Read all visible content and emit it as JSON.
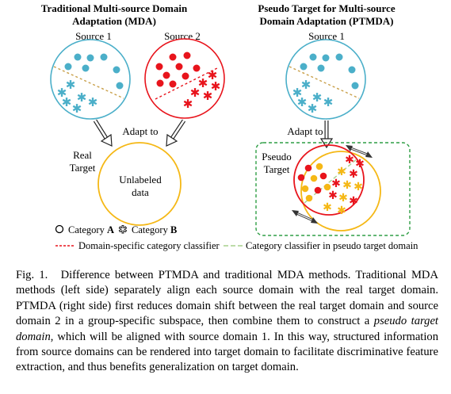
{
  "figure": {
    "left_title": [
      "Traditional Multi-source Domain",
      "Adaptation (MDA)"
    ],
    "right_title": [
      "Pseudo Target for Multi-source",
      "Domain Adaptation (PTMDA)"
    ],
    "source1_label": "Source 1",
    "source2_label": "Source 2",
    "adapt_to_label": "Adapt to",
    "real_target_label": [
      "Real",
      "Target"
    ],
    "unlabeled_label": [
      "Unlabeled",
      "data"
    ],
    "pseudo_target_label": [
      "Pseudo",
      "Target"
    ],
    "legend": {
      "category_a_prefix": "Category ",
      "category_a_letter": "A",
      "category_b_prefix": "Category ",
      "category_b_letter": "B",
      "domain_classifier": "Domain-specific category classifier",
      "pseudo_classifier": "Category classifier in pseudo target domain"
    },
    "colors": {
      "source1": "#4BAFC9",
      "source2": "#E8141C",
      "target": "#F5B816",
      "frame": "#2F9E45",
      "divider": "#C9A04A"
    }
  },
  "caption": {
    "label": "Fig. 1.",
    "text_1": "Difference between PTMDA and traditional MDA methods. Traditional MDA methods (left side) separately align each source domain with the real target domain. PTMDA (right side) first reduces domain shift between the real target domain and source domain 2 in a group-specific subspace, then combine them to construct a ",
    "emphasis": "pseudo target domain",
    "text_2": ", which will be aligned with source domain 1. In this way, structured information from source domains can be rendered into target domain to facilitate discriminative feature extraction, and thus benefits generalization on target domain."
  }
}
